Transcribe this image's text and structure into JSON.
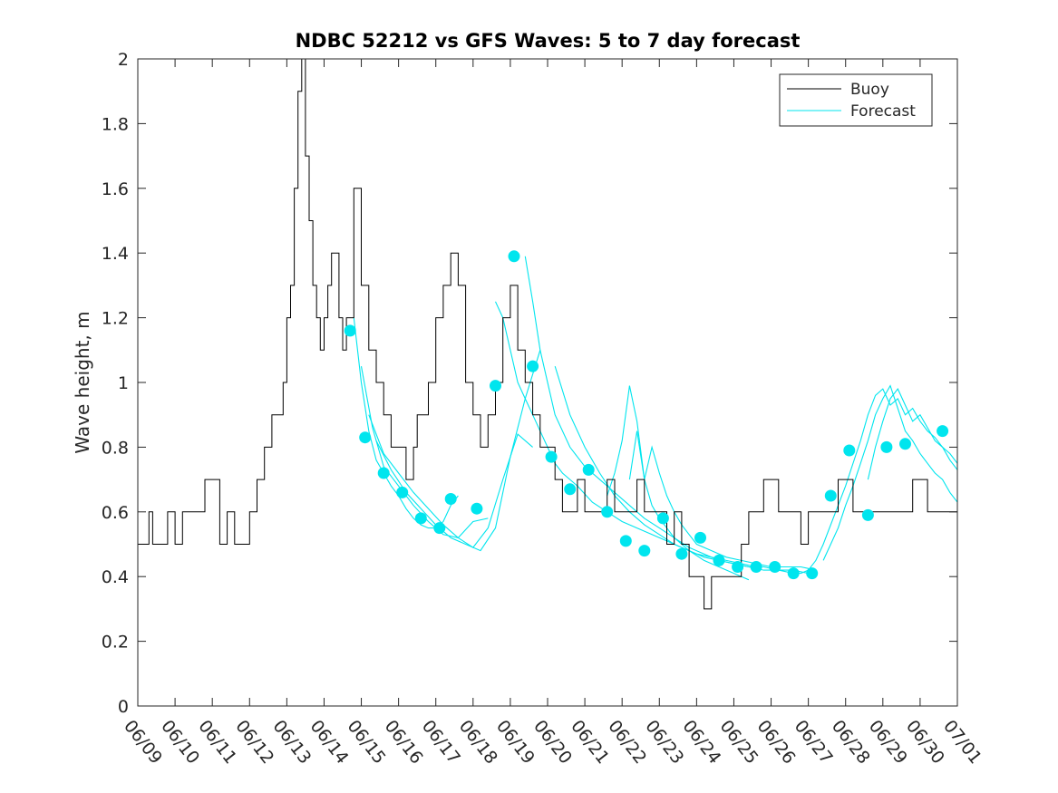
{
  "chart_data": {
    "type": "line",
    "title": "NDBC 52212 vs GFS Waves: 5 to 7 day forecast",
    "xlabel": "",
    "ylabel": "Wave height, m",
    "xlim": [
      "06/09",
      "07/01"
    ],
    "ylim": [
      0,
      2
    ],
    "yticks": [
      0,
      0.2,
      0.4,
      0.6,
      0.8,
      1,
      1.2,
      1.4,
      1.6,
      1.8,
      2
    ],
    "ytick_labels": [
      "0",
      "0.2",
      "0.4",
      "0.6",
      "0.8",
      "1",
      "1.2",
      "1.4",
      "1.6",
      "1.8",
      "2"
    ],
    "xtick_labels": [
      "06/09",
      "06/10",
      "06/11",
      "06/12",
      "06/13",
      "06/14",
      "06/15",
      "06/16",
      "06/17",
      "06/18",
      "06/19",
      "06/20",
      "06/21",
      "06/22",
      "06/23",
      "06/24",
      "06/25",
      "06/26",
      "06/27",
      "06/28",
      "06/29",
      "06/30",
      "07/01"
    ],
    "grid": false,
    "legend": "top-right",
    "colors": {
      "buoy": "#000000",
      "forecast": "#00e5ee",
      "axis": "#262626"
    },
    "series": [
      {
        "name": "Buoy",
        "style": "line",
        "x": [
          0,
          0.3,
          0.4,
          0.6,
          0.8,
          1.0,
          1.2,
          1.4,
          1.6,
          1.8,
          2.0,
          2.2,
          2.4,
          2.6,
          2.8,
          3.0,
          3.2,
          3.4,
          3.6,
          3.8,
          3.9,
          4.0,
          4.1,
          4.2,
          4.3,
          4.4,
          4.5,
          4.6,
          4.7,
          4.8,
          4.9,
          5.0,
          5.1,
          5.2,
          5.4,
          5.5,
          5.6,
          5.8,
          6.0,
          6.2,
          6.4,
          6.6,
          6.8,
          7.0,
          7.2,
          7.4,
          7.5,
          7.6,
          7.8,
          8.0,
          8.2,
          8.4,
          8.6,
          8.8,
          9.0,
          9.2,
          9.4,
          9.6,
          9.8,
          10.0,
          10.2,
          10.4,
          10.6,
          10.8,
          11.0,
          11.2,
          11.4,
          11.6,
          11.8,
          12.0,
          12.2,
          12.4,
          12.6,
          12.8,
          13.0,
          13.2,
          13.4,
          13.6,
          13.8,
          14.0,
          14.2,
          14.4,
          14.6,
          14.8,
          15.0,
          15.2,
          15.4,
          15.6,
          15.8,
          16.0,
          16.2,
          16.4,
          16.6,
          16.8,
          17.0,
          17.2,
          17.4,
          17.6,
          17.8,
          18.0,
          18.2,
          18.4,
          18.6,
          18.8,
          19.0,
          19.2,
          19.4,
          19.6,
          19.8,
          20.0,
          20.2,
          20.4,
          20.6,
          20.8,
          21.0,
          21.2,
          21.4,
          21.6,
          21.8,
          22.0
        ],
        "y": [
          0.5,
          0.6,
          0.5,
          0.5,
          0.6,
          0.5,
          0.6,
          0.6,
          0.6,
          0.7,
          0.7,
          0.5,
          0.6,
          0.5,
          0.5,
          0.6,
          0.7,
          0.8,
          0.9,
          0.9,
          1.0,
          1.2,
          1.3,
          1.6,
          1.9,
          2.0,
          1.7,
          1.5,
          1.3,
          1.2,
          1.1,
          1.2,
          1.3,
          1.4,
          1.2,
          1.1,
          1.2,
          1.6,
          1.3,
          1.1,
          1.0,
          0.9,
          0.8,
          0.8,
          0.7,
          0.8,
          0.9,
          0.9,
          1.0,
          1.2,
          1.3,
          1.4,
          1.3,
          1.0,
          0.9,
          0.8,
          0.9,
          1.0,
          1.2,
          1.3,
          1.1,
          1.0,
          0.9,
          0.8,
          0.8,
          0.7,
          0.6,
          0.6,
          0.7,
          0.6,
          0.6,
          0.6,
          0.7,
          0.6,
          0.6,
          0.6,
          0.7,
          0.6,
          0.6,
          0.6,
          0.5,
          0.6,
          0.5,
          0.4,
          0.4,
          0.3,
          0.4,
          0.4,
          0.4,
          0.4,
          0.5,
          0.6,
          0.6,
          0.7,
          0.7,
          0.6,
          0.6,
          0.6,
          0.5,
          0.6,
          0.6,
          0.6,
          0.6,
          0.7,
          0.7,
          0.6,
          0.6,
          0.6,
          0.6,
          0.6,
          0.6,
          0.6,
          0.6,
          0.7,
          0.7,
          0.6,
          0.6,
          0.6,
          0.6,
          0.6
        ]
      },
      {
        "name": "Forecast",
        "style": "line",
        "lines": [
          {
            "x": [
              5.8,
              6.0,
              6.2,
              6.4,
              6.6,
              6.8,
              7.0,
              7.2,
              7.4,
              7.6,
              7.8,
              8.0,
              8.2,
              8.4,
              8.6
            ],
            "y": [
              1.2,
              1.0,
              0.85,
              0.76,
              0.72,
              0.68,
              0.65,
              0.61,
              0.58,
              0.56,
              0.55,
              0.55,
              0.57,
              0.62,
              0.65
            ]
          },
          {
            "x": [
              6.0,
              6.3,
              6.6,
              7.0,
              7.4,
              7.8,
              8.2,
              8.6,
              9.0,
              9.4
            ],
            "y": [
              1.05,
              0.86,
              0.74,
              0.68,
              0.62,
              0.57,
              0.53,
              0.52,
              0.57,
              0.58
            ]
          },
          {
            "x": [
              6.2,
              6.6,
              7.0,
              7.4,
              7.8,
              8.2,
              8.6,
              9.0,
              9.4,
              9.8,
              10.2,
              10.6
            ],
            "y": [
              0.9,
              0.78,
              0.72,
              0.66,
              0.61,
              0.56,
              0.52,
              0.49,
              0.55,
              0.7,
              0.84,
              0.8
            ]
          },
          {
            "x": [
              6.4,
              6.8,
              7.2,
              7.6,
              8.0,
              8.4,
              8.8,
              9.2,
              9.6,
              10.0,
              10.4,
              10.8
            ],
            "y": [
              0.82,
              0.73,
              0.66,
              0.61,
              0.56,
              0.52,
              0.5,
              0.48,
              0.55,
              0.77,
              0.95,
              1.1
            ]
          },
          {
            "x": [
              9.6,
              9.8,
              10.0,
              10.2,
              10.4,
              10.6,
              10.8,
              11.0,
              11.2,
              11.4,
              11.8,
              12.2,
              12.6,
              13.0,
              13.4,
              13.8,
              14.2,
              14.6,
              15.0,
              15.4,
              15.8,
              16.2,
              16.6
            ],
            "y": [
              1.25,
              1.2,
              1.1,
              1.0,
              0.95,
              0.9,
              0.85,
              0.8,
              0.75,
              0.72,
              0.68,
              0.63,
              0.6,
              0.57,
              0.55,
              0.53,
              0.51,
              0.49,
              0.47,
              0.46,
              0.45,
              0.44,
              0.43
            ]
          },
          {
            "x": [
              10.4,
              10.6,
              10.8,
              11.0,
              11.2,
              11.6,
              12.0,
              12.4,
              12.8,
              13.2,
              13.6,
              14.0,
              14.4,
              14.8,
              15.2,
              15.6,
              16.0,
              16.4,
              16.8,
              17.2,
              17.6
            ],
            "y": [
              1.39,
              1.25,
              1.1,
              1.0,
              0.9,
              0.8,
              0.74,
              0.7,
              0.66,
              0.62,
              0.58,
              0.55,
              0.52,
              0.49,
              0.47,
              0.45,
              0.44,
              0.43,
              0.42,
              0.42,
              0.41
            ]
          },
          {
            "x": [
              11.2,
              11.6,
              12.0,
              12.4,
              12.8,
              13.2,
              13.6,
              14.0,
              14.4,
              14.8,
              15.2,
              15.6,
              16.0,
              16.4
            ],
            "y": [
              1.05,
              0.9,
              0.8,
              0.72,
              0.65,
              0.6,
              0.56,
              0.53,
              0.5,
              0.48,
              0.45,
              0.43,
              0.41,
              0.39
            ]
          },
          {
            "x": [
              12.6,
              12.8,
              13.0,
              13.2,
              13.4,
              13.6,
              13.8,
              14.0,
              14.2,
              14.4,
              14.6,
              14.8,
              15.0,
              15.2,
              15.6,
              16.0,
              16.4,
              16.8,
              17.2,
              17.6,
              18.0
            ],
            "y": [
              0.65,
              0.72,
              0.82,
              0.99,
              0.88,
              0.7,
              0.62,
              0.58,
              0.55,
              0.52,
              0.5,
              0.48,
              0.47,
              0.46,
              0.45,
              0.44,
              0.43,
              0.43,
              0.42,
              0.42,
              0.41
            ]
          },
          {
            "x": [
              13.2,
              13.4,
              13.6,
              13.8,
              14.0,
              14.2,
              14.4,
              14.6,
              14.8,
              15.0,
              15.4,
              15.8,
              16.2,
              16.6,
              17.0,
              17.4,
              17.8,
              18.2
            ],
            "y": [
              0.7,
              0.85,
              0.7,
              0.8,
              0.72,
              0.65,
              0.6,
              0.56,
              0.53,
              0.5,
              0.48,
              0.46,
              0.45,
              0.44,
              0.43,
              0.43,
              0.43,
              0.42
            ]
          },
          {
            "x": [
              17.6,
              17.8,
              18.0,
              18.2,
              18.4,
              18.6,
              18.8,
              19.0,
              19.2,
              19.4,
              19.6,
              19.8,
              20.0,
              20.2,
              20.4,
              20.6,
              20.8,
              21.0,
              21.2,
              21.4,
              21.6,
              21.8,
              22.0
            ],
            "y": [
              0.41,
              0.41,
              0.42,
              0.45,
              0.5,
              0.56,
              0.62,
              0.68,
              0.75,
              0.82,
              0.9,
              0.96,
              0.98,
              0.93,
              0.95,
              0.9,
              0.92,
              0.88,
              0.85,
              0.83,
              0.8,
              0.78,
              0.75
            ]
          },
          {
            "x": [
              18.4,
              18.6,
              18.8,
              19.0,
              19.2,
              19.4,
              19.6,
              19.8,
              20.0,
              20.2,
              20.4,
              20.6,
              20.8,
              21.0,
              21.2,
              21.4,
              21.6,
              21.8,
              22.0
            ],
            "y": [
              0.45,
              0.5,
              0.55,
              0.62,
              0.68,
              0.75,
              0.82,
              0.9,
              0.95,
              0.99,
              0.92,
              0.85,
              0.82,
              0.78,
              0.75,
              0.72,
              0.7,
              0.66,
              0.63
            ]
          },
          {
            "x": [
              19.6,
              19.8,
              20.0,
              20.2,
              20.4,
              20.6,
              20.8,
              21.0,
              21.2,
              21.4,
              21.6,
              21.8,
              22.0
            ],
            "y": [
              0.7,
              0.8,
              0.88,
              0.95,
              0.98,
              0.93,
              0.88,
              0.9,
              0.86,
              0.82,
              0.8,
              0.76,
              0.73
            ]
          }
        ],
        "markers_x": [
          5.7,
          6.1,
          6.6,
          7.1,
          7.6,
          8.1,
          8.4,
          9.1,
          9.6,
          10.1,
          10.6,
          11.1,
          11.6,
          12.1,
          12.6,
          13.1,
          13.6,
          14.1,
          14.6,
          15.1,
          15.6,
          16.1,
          16.6,
          17.1,
          17.6,
          18.1,
          18.6,
          19.1,
          19.6,
          20.1,
          20.6
        ],
        "markers_y": [
          1.16,
          0.83,
          0.72,
          0.66,
          0.58,
          0.55,
          0.64,
          0.61,
          0.99,
          1.39,
          1.05,
          0.77,
          0.67,
          0.73,
          0.6,
          0.51,
          0.48,
          0.58,
          0.47,
          0.52,
          0.45,
          0.43,
          0.43,
          0.43,
          0.41,
          0.41,
          0.65,
          0.79,
          0.59,
          0.8,
          0.81
        ]
      }
    ],
    "extra_markers": {
      "x": [
        21.6
      ],
      "y": [
        0.85
      ]
    }
  },
  "legend": {
    "buoy_label": "Buoy",
    "forecast_label": "Forecast"
  }
}
